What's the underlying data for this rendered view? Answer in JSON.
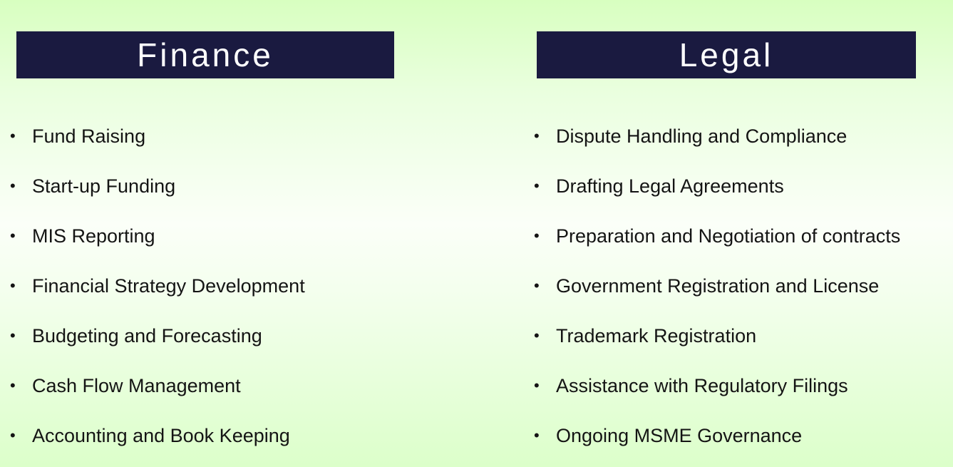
{
  "finance": {
    "title": "Finance",
    "items": [
      {
        "label": "Fund Raising"
      },
      {
        "label": "Start-up Funding"
      },
      {
        "label": "MIS Reporting"
      },
      {
        "label": "Financial Strategy Development"
      },
      {
        "label": "Budgeting and Forecasting"
      },
      {
        "label": "Cash Flow Management"
      },
      {
        "label": "Accounting and Book Keeping"
      }
    ]
  },
  "legal": {
    "title": "Legal",
    "items": [
      {
        "label": "Dispute Handling and Compliance"
      },
      {
        "label": "Drafting Legal Agreements"
      },
      {
        "label": "Preparation and Negotiation of contracts"
      },
      {
        "label": "Government Registration and License"
      },
      {
        "label": "Trademark Registration"
      },
      {
        "label": "Assistance with Regulatory Filings"
      },
      {
        "label": "Ongoing MSME Governance"
      }
    ]
  },
  "colors": {
    "header_bg": "#1a1a40",
    "header_text": "#ffffff",
    "text": "#141414",
    "background_light": "#fbfff8",
    "background_green": "#d8ffc0"
  }
}
